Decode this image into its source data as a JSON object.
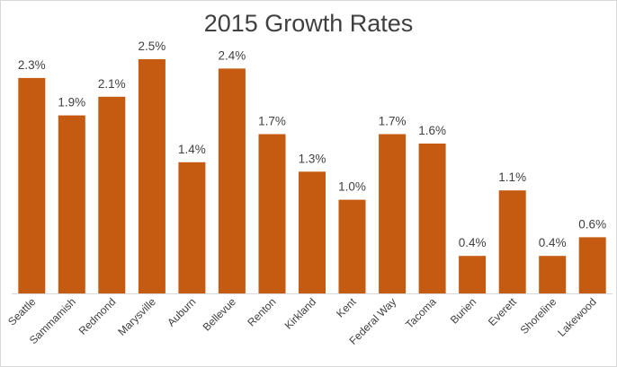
{
  "chart_data": {
    "type": "bar",
    "title": "2015 Growth Rates",
    "categories": [
      "Seattle",
      "Sammamish",
      "Redmond",
      "Marysville",
      "Auburn",
      "Bellevue",
      "Renton",
      "Kirkland",
      "Kent",
      "Federal Way",
      "Tacoma",
      "Burien",
      "Everett",
      "Shoreline",
      "Lakewood"
    ],
    "values": [
      2.3,
      1.9,
      2.1,
      2.5,
      1.4,
      2.4,
      1.7,
      1.3,
      1.0,
      1.7,
      1.6,
      0.4,
      1.1,
      0.4,
      0.6
    ],
    "data_labels": [
      "2.3%",
      "1.9%",
      "2.1%",
      "2.5%",
      "1.4%",
      "2.4%",
      "1.7%",
      "1.3%",
      "1.0%",
      "1.7%",
      "1.6%",
      "0.4%",
      "1.1%",
      "0.4%",
      "0.6%"
    ],
    "ylim": [
      0,
      2.5
    ],
    "grid": false,
    "legend": "none",
    "bar_color": "#c55a11",
    "axis_color": "#d9d9d9",
    "text_color": "#404040"
  }
}
